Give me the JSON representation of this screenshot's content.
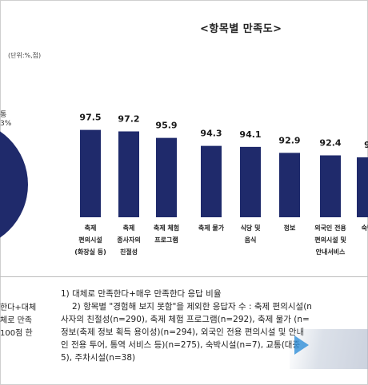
{
  "chart_title": "<항목별 만족도>",
  "unit_label": "(단위:%,점)",
  "pie_partial": {
    "label_line1": "통",
    "label_line2": "3%",
    "color": "#1f2a6b"
  },
  "chart_data": {
    "type": "bar",
    "title": "<항목별 만족도>",
    "categories": [
      [
        "축제",
        "편의시설",
        "(화장실 등)"
      ],
      [
        "축제",
        "종사자의",
        "친절성"
      ],
      [
        "축제 체험",
        "프로그램"
      ],
      [
        "축제 물가"
      ],
      [
        "식당 및",
        "음식"
      ],
      [
        "정보"
      ],
      [
        "외국인 전용",
        "편의시설 및",
        "안내서비스"
      ],
      [
        "숙박"
      ]
    ],
    "values": [
      97.5,
      97.2,
      95.9,
      94.3,
      94.1,
      92.9,
      92.4,
      null
    ],
    "value_labels": [
      "97.5",
      "97.2",
      "95.9",
      "94.3",
      "94.1",
      "92.9",
      "92.4",
      "9"
    ],
    "ylim": [
      0,
      100
    ],
    "bar_color": "#1f2a6b"
  },
  "left_notes": [
    "한다+대체",
    "체로 만족",
    "100점 한"
  ],
  "notes": [
    "1) 대체로 만족한다+매우 만족한다 응답 비율",
    "2) 항목별 \"경험해 보지 못함\"을 제외한 응답자 수 : 축제 편의시설(n",
    "사자의 친절성(n=290), 축제 체험 프로그램(n=292), 축제 물가 (n=",
    "정보(축제 정보 획득 용이성)(n=294), 외국인 전용 편의시설 및 안내",
    "인 전용 투어, 통역 서비스 등)(n=275), 숙박시설(n=7), 교통(대중",
    "5), 주차시설(n=38)"
  ]
}
